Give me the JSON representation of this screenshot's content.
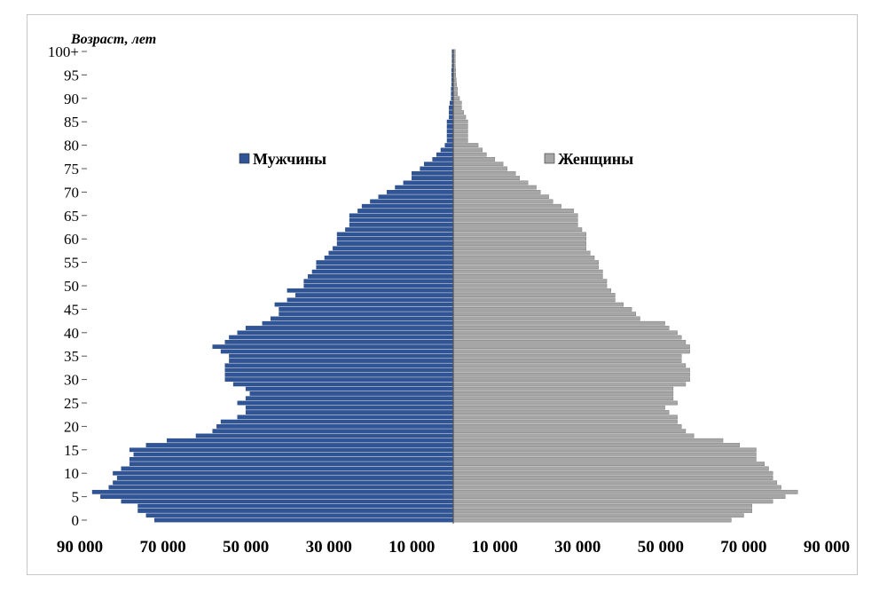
{
  "chart_data": {
    "type": "bar",
    "subtype": "population-pyramid",
    "ylabel": "Возраст, лет",
    "xlim": [
      -90000,
      90000
    ],
    "x_ticks": [
      -90000,
      -70000,
      -50000,
      -30000,
      -10000,
      10000,
      30000,
      50000,
      70000,
      90000
    ],
    "x_tick_labels": [
      "90 000",
      "70 000",
      "50 000",
      "30 000",
      "10 000",
      "10 000",
      "30 000",
      "50 000",
      "70 000",
      "90 000"
    ],
    "y_ticks": [
      0,
      5,
      10,
      15,
      20,
      25,
      30,
      35,
      40,
      45,
      50,
      55,
      60,
      65,
      70,
      75,
      80,
      85,
      90,
      95,
      100
    ],
    "y_tick_labels": [
      "0",
      "5",
      "10",
      "15",
      "20",
      "25",
      "30",
      "35",
      "40",
      "45",
      "50",
      "55",
      "60",
      "65",
      "70",
      "75",
      "80",
      "85",
      "90",
      "95",
      "100+"
    ],
    "legend_position": "center",
    "series": [
      {
        "name": "Мужчины",
        "side": "left",
        "color": "#2f5597",
        "values": [
          72000,
          74000,
          76000,
          76000,
          80000,
          85000,
          87000,
          83000,
          82000,
          81000,
          82000,
          80000,
          78000,
          78000,
          77000,
          78000,
          74000,
          69000,
          62000,
          58000,
          57000,
          56000,
          52000,
          50000,
          50000,
          52000,
          50000,
          49000,
          50000,
          53000,
          55000,
          55000,
          55000,
          55000,
          54000,
          54000,
          56000,
          58000,
          55000,
          54000,
          52000,
          50000,
          46000,
          44000,
          42000,
          42000,
          43000,
          40000,
          38000,
          40000,
          36000,
          36000,
          35000,
          34000,
          33000,
          33000,
          31000,
          30000,
          29000,
          28000,
          28000,
          28000,
          26000,
          25000,
          25000,
          25000,
          23000,
          22000,
          20000,
          18000,
          16000,
          14000,
          12000,
          10000,
          10000,
          8000,
          7000,
          5000,
          4000,
          3000,
          2000,
          1500,
          1500,
          1500,
          1500,
          1500,
          1000,
          1000,
          1000,
          800,
          500,
          500,
          500,
          400,
          400,
          400,
          400,
          300,
          300,
          300,
          300
        ]
      },
      {
        "name": "Женщины",
        "side": "right",
        "color": "#a6a6a6",
        "values": [
          67000,
          70000,
          72000,
          72000,
          77000,
          80000,
          83000,
          79000,
          78000,
          77000,
          77000,
          76000,
          75000,
          73000,
          73000,
          73000,
          69000,
          65000,
          58000,
          56000,
          55000,
          54000,
          54000,
          52000,
          51000,
          54000,
          53000,
          53000,
          53000,
          56000,
          57000,
          57000,
          57000,
          56000,
          55000,
          55000,
          57000,
          57000,
          56000,
          55000,
          54000,
          52000,
          51000,
          45000,
          44000,
          43000,
          41000,
          39000,
          39000,
          38000,
          37000,
          37000,
          36000,
          36000,
          35000,
          35000,
          34000,
          33000,
          32000,
          32000,
          32000,
          32000,
          31000,
          30000,
          30000,
          30000,
          29000,
          26000,
          24000,
          23000,
          21000,
          20000,
          18000,
          16000,
          15000,
          13000,
          12000,
          10000,
          8000,
          7000,
          6000,
          3500,
          3500,
          3500,
          3500,
          3500,
          3000,
          2500,
          2000,
          2000,
          1500,
          1000,
          1000,
          800,
          700,
          600,
          600,
          500,
          500,
          500,
          500
        ]
      }
    ]
  }
}
